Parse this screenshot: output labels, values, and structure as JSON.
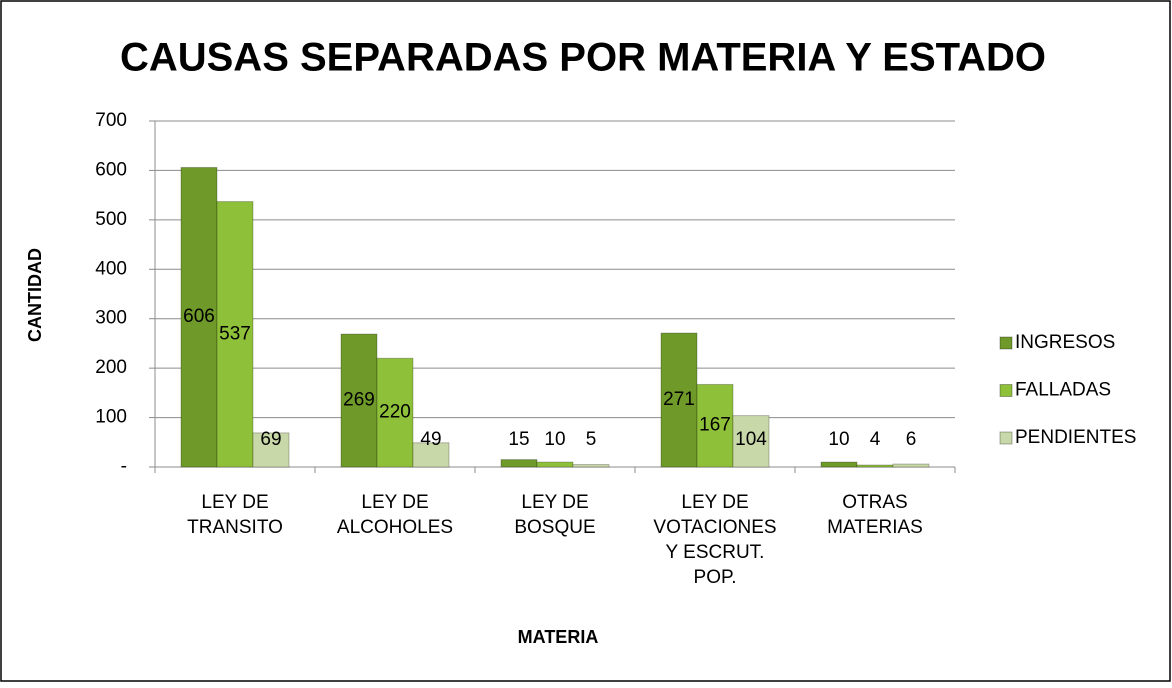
{
  "chart_data": {
    "type": "bar",
    "title": "CAUSAS  SEPARADAS POR MATERIA Y ESTADO",
    "x_label": "MATERIA",
    "y_label": "CANTIDAD",
    "categories": [
      [
        "LEY DE",
        "TRANSITO"
      ],
      [
        "LEY DE",
        "ALCOHOLES"
      ],
      [
        "LEY DE",
        "BOSQUE"
      ],
      [
        "LEY DE",
        "VOTACIONES",
        "Y ESCRUT.",
        "POP."
      ],
      [
        "OTRAS",
        "MATERIAS"
      ]
    ],
    "series": [
      {
        "name": "INGRESOS",
        "color": "#6f9a2a",
        "values": [
          606,
          269,
          15,
          271,
          10
        ]
      },
      {
        "name": "FALLADAS",
        "color": "#8fc03a",
        "values": [
          537,
          220,
          10,
          167,
          4
        ]
      },
      {
        "name": "PENDIENTES",
        "color": "#c9d8a8",
        "values": [
          69,
          49,
          5,
          104,
          6
        ]
      }
    ],
    "ylim": [
      0,
      700
    ],
    "yticks": [
      {
        "value": 0,
        "label": "-"
      },
      100,
      200,
      300,
      400,
      500,
      600,
      700
    ],
    "grid": true,
    "legend": "right"
  }
}
